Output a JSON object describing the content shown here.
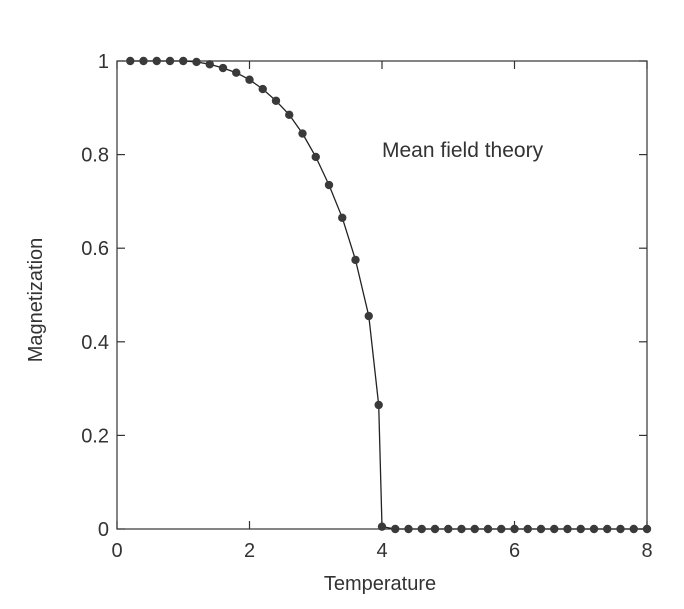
{
  "chart_data": {
    "type": "line",
    "title": "",
    "xlabel": "Temperature",
    "ylabel": "Magnetization",
    "xlim": [
      0,
      8
    ],
    "ylim": [
      0,
      1
    ],
    "x_ticks": [
      0,
      2,
      4,
      6,
      8
    ],
    "y_ticks": [
      0,
      0.2,
      0.4,
      0.6,
      0.8,
      1
    ],
    "x_tick_labels": [
      "0",
      "2",
      "4",
      "6",
      "8"
    ],
    "y_tick_labels": [
      "0",
      "0.2",
      "0.4",
      "0.6",
      "0.8",
      "1"
    ],
    "grid": false,
    "annotations": [
      {
        "text": "Mean field theory"
      }
    ],
    "colors": {
      "line": "#222222",
      "marker": "#3a3a3a",
      "axis": "#333333"
    },
    "series": [
      {
        "x": [
          0.2,
          0.4,
          0.6,
          0.8,
          1.0,
          1.2,
          1.4,
          1.6,
          1.8,
          2.0,
          2.2,
          2.4,
          2.6,
          2.8,
          3.0,
          3.2,
          3.4,
          3.6,
          3.8,
          3.95,
          4.0,
          4.2,
          4.4,
          4.6,
          4.8,
          5.0,
          5.2,
          5.4,
          5.6,
          5.8,
          6.0,
          6.2,
          6.4,
          6.6,
          6.8,
          7.0,
          7.2,
          7.4,
          7.6,
          7.8,
          8.0
        ],
        "y": [
          1.0,
          1.0,
          1.0,
          1.0,
          1.0,
          0.998,
          0.993,
          0.985,
          0.975,
          0.96,
          0.94,
          0.915,
          0.885,
          0.845,
          0.795,
          0.735,
          0.665,
          0.575,
          0.455,
          0.265,
          0.005,
          0.0,
          0.0,
          0.0,
          0.0,
          0.0,
          0.0,
          0.0,
          0.0,
          0.0,
          0.0,
          0.0,
          0.0,
          0.0,
          0.0,
          0.0,
          0.0,
          0.0,
          0.0,
          0.0,
          0.0
        ]
      }
    ]
  }
}
